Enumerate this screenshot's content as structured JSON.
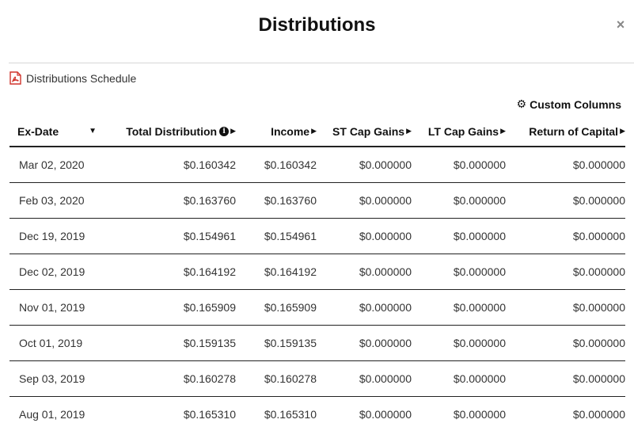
{
  "modal": {
    "title": "Distributions",
    "close_label": "×"
  },
  "schedule_link": {
    "label": "Distributions Schedule",
    "icon": "pdf-icon"
  },
  "custom_columns": {
    "label": "Custom Columns",
    "icon": "gear-icon"
  },
  "table": {
    "headers": {
      "ex_date": "Ex-Date",
      "total_distribution": "Total Distribution",
      "income": "Income",
      "st_cap_gains": "ST Cap Gains",
      "lt_cap_gains": "LT Cap Gains",
      "return_of_capital": "Return of Capital"
    },
    "rows": [
      {
        "ex_date": "Mar 02, 2020",
        "total": "$0.160342",
        "income": "$0.160342",
        "st": "$0.000000",
        "lt": "$0.000000",
        "roc": "$0.000000"
      },
      {
        "ex_date": "Feb 03, 2020",
        "total": "$0.163760",
        "income": "$0.163760",
        "st": "$0.000000",
        "lt": "$0.000000",
        "roc": "$0.000000"
      },
      {
        "ex_date": "Dec 19, 2019",
        "total": "$0.154961",
        "income": "$0.154961",
        "st": "$0.000000",
        "lt": "$0.000000",
        "roc": "$0.000000"
      },
      {
        "ex_date": "Dec 02, 2019",
        "total": "$0.164192",
        "income": "$0.164192",
        "st": "$0.000000",
        "lt": "$0.000000",
        "roc": "$0.000000"
      },
      {
        "ex_date": "Nov 01, 2019",
        "total": "$0.165909",
        "income": "$0.165909",
        "st": "$0.000000",
        "lt": "$0.000000",
        "roc": "$0.000000"
      },
      {
        "ex_date": "Oct 01, 2019",
        "total": "$0.159135",
        "income": "$0.159135",
        "st": "$0.000000",
        "lt": "$0.000000",
        "roc": "$0.000000"
      },
      {
        "ex_date": "Sep 03, 2019",
        "total": "$0.160278",
        "income": "$0.160278",
        "st": "$0.000000",
        "lt": "$0.000000",
        "roc": "$0.000000"
      },
      {
        "ex_date": "Aug 01, 2019",
        "total": "$0.165310",
        "income": "$0.165310",
        "st": "$0.000000",
        "lt": "$0.000000",
        "roc": "$0.000000"
      }
    ]
  }
}
